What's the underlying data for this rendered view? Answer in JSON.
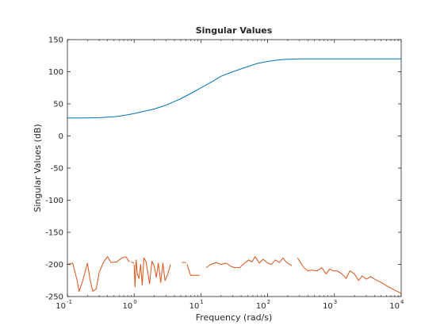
{
  "chart_data": {
    "type": "line",
    "title": "Singular Values",
    "xlabel": "Frequency (rad/s)",
    "ylabel": "Singular Values (dB)",
    "xscale": "log",
    "xlim": [
      0.1,
      10000
    ],
    "ylim": [
      -250,
      150
    ],
    "grid": false,
    "legend": "none",
    "x_ticks": [
      {
        "base": "10",
        "exp": "-1"
      },
      {
        "base": "10",
        "exp": "0"
      },
      {
        "base": "10",
        "exp": "1"
      },
      {
        "base": "10",
        "exp": "2"
      },
      {
        "base": "10",
        "exp": "3"
      },
      {
        "base": "10",
        "exp": "4"
      }
    ],
    "y_ticks": [
      "150",
      "100",
      "50",
      "0",
      "-50",
      "-100",
      "-150",
      "-200",
      "-250"
    ],
    "series": [
      {
        "color": "#0072BD",
        "points": [
          [
            0.1,
            28
          ],
          [
            0.2,
            28
          ],
          [
            0.3,
            28.5
          ],
          [
            0.5,
            30
          ],
          [
            0.7,
            32
          ],
          [
            1,
            35
          ],
          [
            1.5,
            39
          ],
          [
            2,
            42
          ],
          [
            3,
            48
          ],
          [
            5,
            58
          ],
          [
            7,
            66
          ],
          [
            10,
            75
          ],
          [
            15,
            85
          ],
          [
            20,
            93
          ],
          [
            30,
            100
          ],
          [
            50,
            108
          ],
          [
            70,
            113
          ],
          [
            100,
            116
          ],
          [
            150,
            118.5
          ],
          [
            200,
            119.5
          ],
          [
            300,
            120
          ],
          [
            1000,
            120
          ],
          [
            10000,
            120
          ]
        ]
      },
      {
        "color": "#D95319",
        "segments": [
          [
            [
              0.1,
              -200
            ],
            [
              0.12,
              -198
            ],
            [
              0.14,
              -225
            ],
            [
              0.15,
              -242
            ],
            [
              0.17,
              -225
            ],
            [
              0.2,
              -198
            ],
            [
              0.22,
              -225
            ],
            [
              0.24,
              -242
            ],
            [
              0.27,
              -238
            ],
            [
              0.3,
              -212
            ],
            [
              0.35,
              -196
            ],
            [
              0.4,
              -188
            ],
            [
              0.45,
              -197
            ],
            [
              0.55,
              -196
            ],
            [
              0.65,
              -190
            ],
            [
              0.75,
              -188
            ],
            [
              0.85,
              -196
            ]
          ],
          [
            [
              0.9,
              -196
            ],
            [
              1.0,
              -198
            ]
          ],
          [
            [
              1.0,
              -200
            ],
            [
              1.03,
              -235
            ],
            [
              1.07,
              -193
            ],
            [
              1.12,
              -215
            ],
            [
              1.18,
              -222
            ],
            [
              1.25,
              -200
            ],
            [
              1.32,
              -232
            ],
            [
              1.4,
              -190
            ],
            [
              1.5,
              -195
            ],
            [
              1.6,
              -212
            ],
            [
              1.7,
              -230
            ],
            [
              1.85,
              -195
            ],
            [
              2.0,
              -203
            ],
            [
              2.15,
              -220
            ],
            [
              2.3,
              -198
            ],
            [
              2.5,
              -228
            ],
            [
              2.7,
              -198
            ],
            [
              2.9,
              -225
            ],
            [
              3.2,
              -215
            ],
            [
              3.5,
              -200
            ]
          ],
          [
            [
              5.2,
              -197
            ],
            [
              6.0,
              -197
            ]
          ],
          [
            [
              6.2,
              -200
            ],
            [
              7.0,
              -217
            ],
            [
              9.5,
              -217
            ]
          ],
          [
            [
              12,
              -205
            ],
            [
              14,
              -200
            ],
            [
              17,
              -197
            ],
            [
              20,
              -200
            ],
            [
              24,
              -198
            ],
            [
              28,
              -203
            ],
            [
              32,
              -205
            ],
            [
              38,
              -205
            ],
            [
              45,
              -198
            ],
            [
              52,
              -193
            ],
            [
              58,
              -196
            ],
            [
              65,
              -188
            ],
            [
              75,
              -198
            ],
            [
              85,
              -192
            ],
            [
              100,
              -198
            ],
            [
              115,
              -200
            ],
            [
              130,
              -193
            ],
            [
              150,
              -197
            ],
            [
              170,
              -190
            ],
            [
              185,
              -195
            ],
            [
              200,
              -198
            ],
            [
              230,
              -202
            ]
          ],
          [
            [
              280,
              -190
            ],
            [
              350,
              -205
            ],
            [
              400,
              -210
            ],
            [
              450,
              -209
            ],
            [
              550,
              -210
            ],
            [
              650,
              -205
            ],
            [
              750,
              -215
            ],
            [
              850,
              -207
            ],
            [
              950,
              -210
            ],
            [
              1100,
              -210
            ],
            [
              1300,
              -215
            ],
            [
              1500,
              -222
            ],
            [
              1700,
              -210
            ],
            [
              2000,
              -215
            ],
            [
              2300,
              -225
            ],
            [
              2600,
              -218
            ],
            [
              3000,
              -223
            ],
            [
              3500,
              -219
            ],
            [
              4000,
              -223
            ],
            [
              5000,
              -228
            ],
            [
              6500,
              -235
            ],
            [
              8000,
              -240
            ],
            [
              10000,
              -245
            ]
          ]
        ]
      }
    ]
  }
}
